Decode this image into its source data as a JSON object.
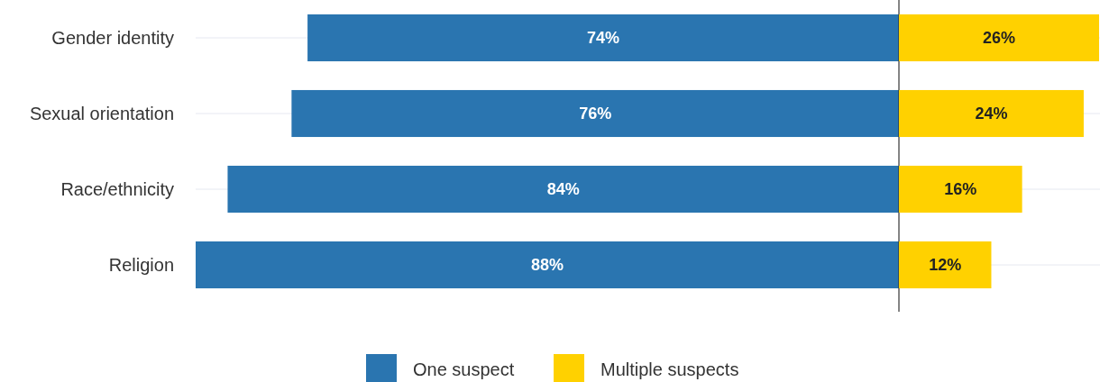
{
  "chart_data": [
    {
      "type": "bar",
      "orientation": "horizontal",
      "categories": [
        "Gender identity",
        "Sexual orientation",
        "Race/ethnicity",
        "Religion"
      ],
      "series": [
        {
          "name": "One suspect",
          "color": "#2a75b0",
          "values": [
            74,
            76,
            84,
            88
          ],
          "value_labels": [
            "74%",
            "76%",
            "84%",
            "88%"
          ]
        }
      ],
      "xlim": [
        88,
        0
      ],
      "tick_labels": "y",
      "grid": "y",
      "legend": "bottom",
      "ref_lines": [
        {
          "axis": "x",
          "value": 0,
          "color": "#333333"
        }
      ]
    },
    {
      "type": "bar",
      "orientation": "horizontal",
      "categories": [
        null,
        null,
        null,
        null
      ],
      "series": [
        {
          "name": "Multiple suspects",
          "color": "#ffd100",
          "values": [
            26,
            24,
            16,
            12
          ],
          "value_labels": [
            "26%",
            "24%",
            "16%",
            "12%"
          ]
        }
      ],
      "xlim": [
        0,
        26
      ],
      "tick_labels": false,
      "grid": "y",
      "legend": "bottom"
    }
  ]
}
